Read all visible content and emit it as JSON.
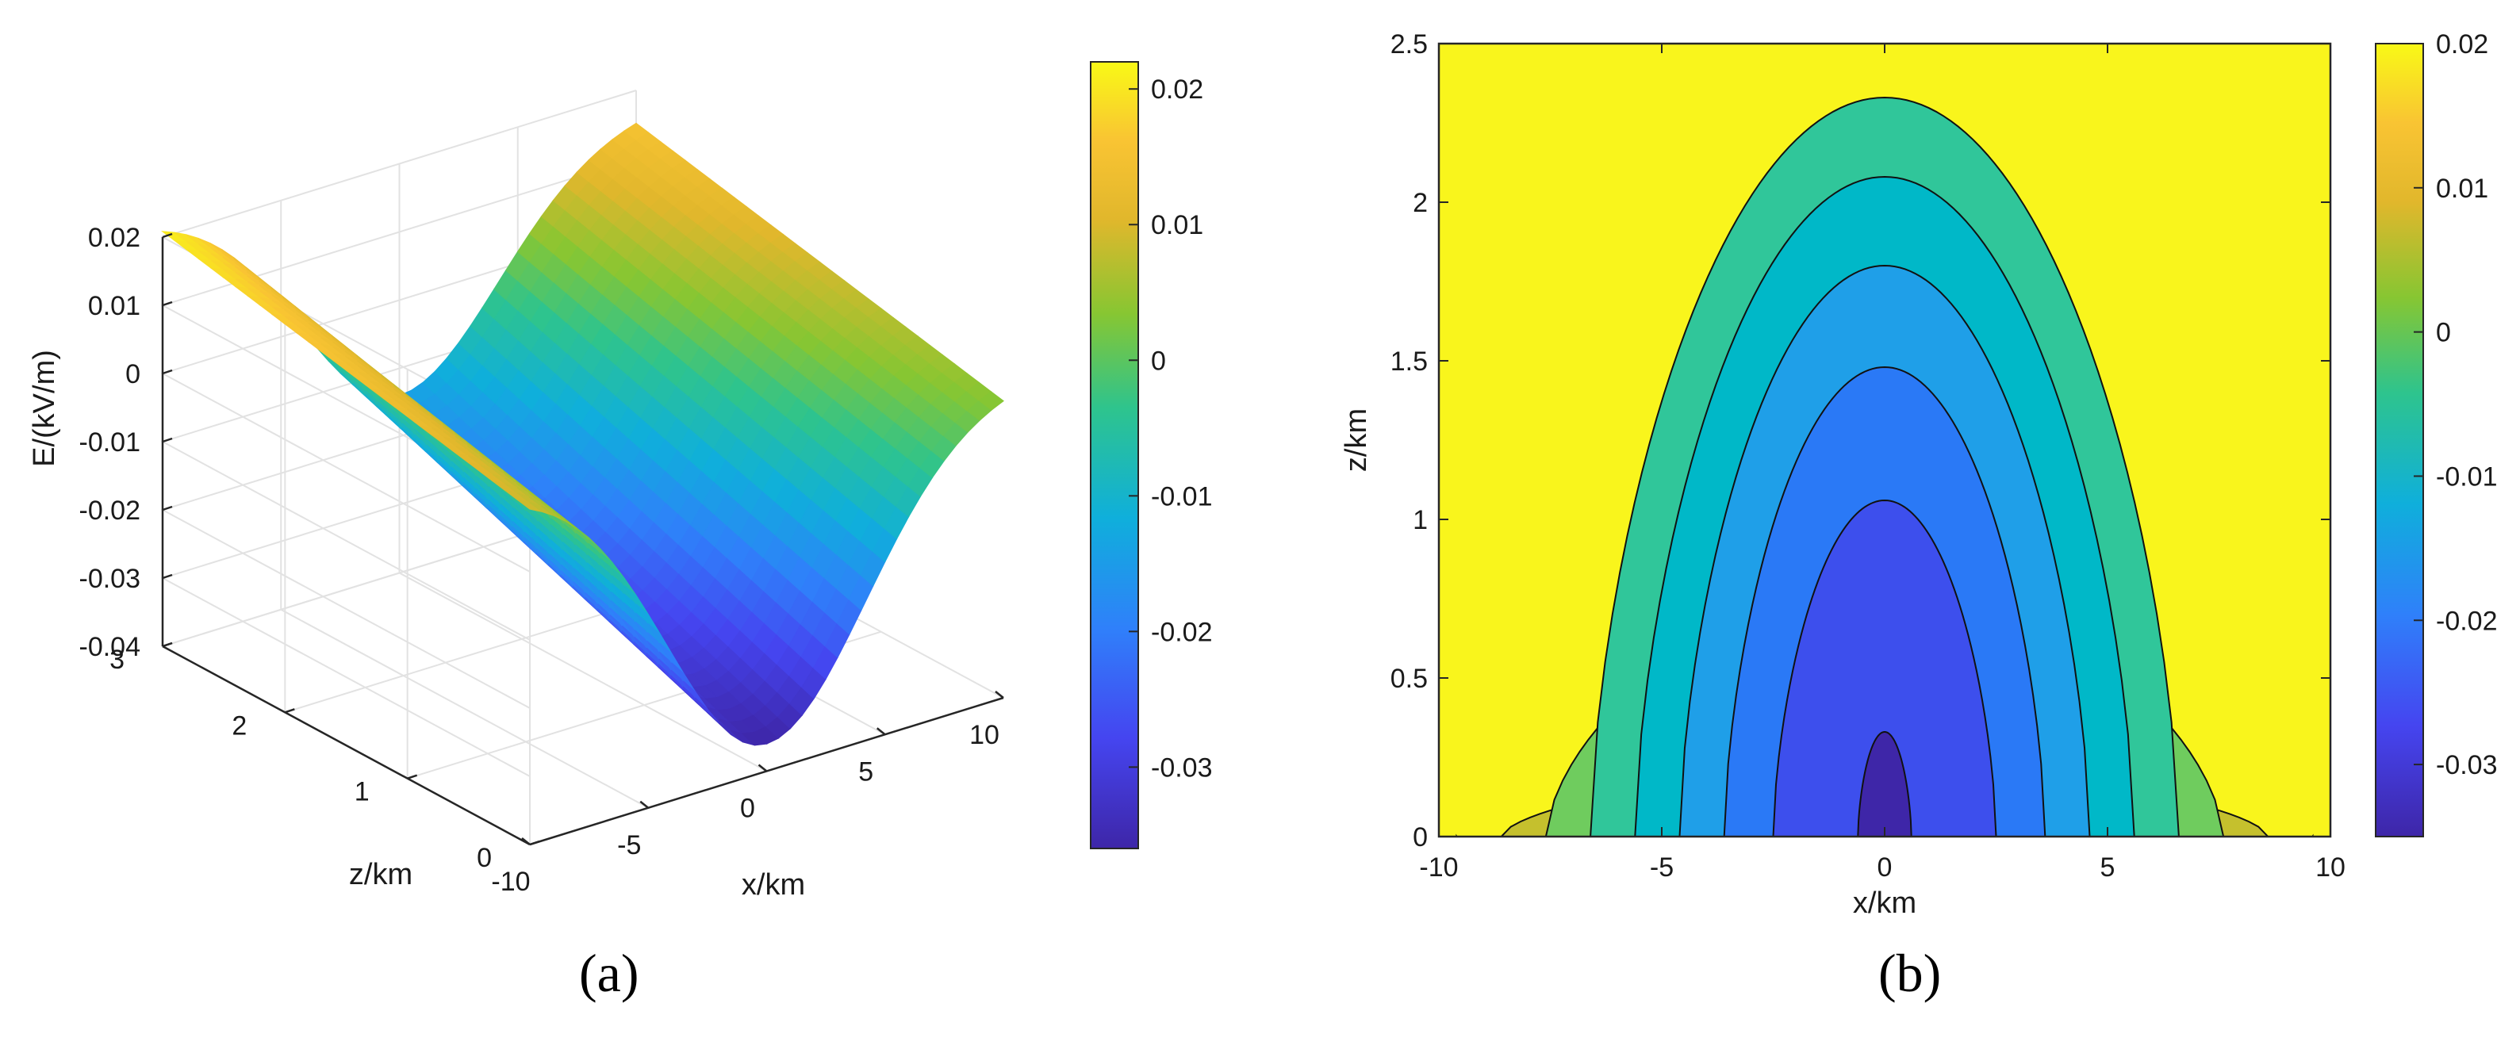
{
  "panels": {
    "a": {
      "label": "(a)"
    },
    "b": {
      "label": "(b)"
    }
  },
  "chart_data": [
    {
      "type": "surface",
      "panel": "(a)",
      "title": "",
      "xlabel": "x/km",
      "ylabel": "z/km",
      "zlabel": "E/(kV/m)",
      "x_ticks": [
        "-10",
        "-5",
        "0",
        "5",
        "10"
      ],
      "y_ticks": [
        "0",
        "1",
        "2",
        "3"
      ],
      "z_ticks": [
        "0.02",
        "0.01",
        "0",
        "-0.01",
        "-0.02",
        "-0.03",
        "-0.04"
      ],
      "xlim": [
        -10,
        10
      ],
      "ylim": [
        0,
        3
      ],
      "zlim": [
        -0.04,
        0.02
      ],
      "grid": true,
      "colormap": "parula",
      "colorbar": {
        "ticks": [
          "0.02",
          "0.01",
          "0",
          "-0.01",
          "-0.02",
          "-0.03"
        ],
        "range": [
          -0.036,
          0.022
        ]
      },
      "surface_samples": [
        {
          "x": -10,
          "z": 0,
          "E": 0.012
        },
        {
          "x": -10,
          "z": 3,
          "E": 0.017
        },
        {
          "x": 0,
          "z": 0,
          "E": -0.036
        },
        {
          "x": 0,
          "z": 3,
          "E": -0.014
        },
        {
          "x": 10,
          "z": 0,
          "E": 0.006
        },
        {
          "x": 10,
          "z": 3,
          "E": 0.022
        }
      ]
    },
    {
      "type": "contourf",
      "panel": "(b)",
      "title": "",
      "xlabel": "x/km",
      "ylabel": "z/km",
      "x_ticks": [
        "-10",
        "-5",
        "0",
        "5",
        "10"
      ],
      "y_ticks": [
        "0",
        "0.5",
        "1",
        "1.5",
        "2",
        "2.5"
      ],
      "xlim": [
        -10,
        10
      ],
      "ylim": [
        0,
        2.5
      ],
      "colormap": "parula",
      "colorbar": {
        "ticks": [
          "0.02",
          "0.01",
          "0",
          "-0.01",
          "-0.02",
          "-0.03"
        ],
        "range": [
          -0.035,
          0.02
        ]
      },
      "contour_half_widths_at_z0_km": [
        0.6,
        2.5,
        3.6,
        4.6,
        5.6,
        6.6,
        7.6,
        8.6,
        9.6
      ],
      "contour_apex_z_km": [
        0.33,
        1.06,
        1.48,
        1.8,
        2.08,
        2.33
      ]
    }
  ]
}
